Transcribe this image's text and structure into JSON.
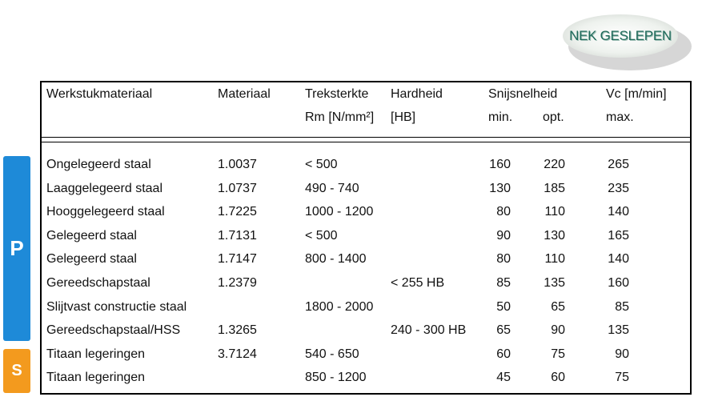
{
  "badge": {
    "label": "NEK GESLEPEN"
  },
  "tabs": {
    "p": "P",
    "s": "S"
  },
  "headers": {
    "werkstuk": "Werkstukmateriaal",
    "materiaal": "Materiaal",
    "treksterkte": "Treksterkte",
    "treksterkte_unit": "Rm [N/mm²]",
    "hardheid": "Hardheid",
    "hardheid_unit": "[HB]",
    "snijsnelheid": "Snijsnelheid",
    "min": "min.",
    "opt": "opt.",
    "vc": "Vc [m/min]",
    "max": "max."
  },
  "rows": [
    {
      "name": "Ongelegeerd staal",
      "mat": "1.0037",
      "trek": "< 500",
      "hard": "",
      "min": "160",
      "opt": "220",
      "max": "265"
    },
    {
      "name": "Laaggelegeerd staal",
      "mat": "1.0737",
      "trek": "490 - 740",
      "hard": "",
      "min": "130",
      "opt": "185",
      "max": "235"
    },
    {
      "name": "Hooggelegeerd staal",
      "mat": "1.7225",
      "trek": "1000 - 1200",
      "hard": "",
      "min": "80",
      "opt": "110",
      "max": "140"
    },
    {
      "name": "Gelegeerd staal",
      "mat": "1.7131",
      "trek": "<  500",
      "hard": "",
      "min": "90",
      "opt": "130",
      "max": "165"
    },
    {
      "name": "Gelegeerd staal",
      "mat": "1.7147",
      "trek": "800 - 1400",
      "hard": "",
      "min": "80",
      "opt": "110",
      "max": "140"
    },
    {
      "name": "Gereedschapstaal",
      "mat": "1.2379",
      "trek": "",
      "hard": "< 255 HB",
      "min": "85",
      "opt": "135",
      "max": "160"
    },
    {
      "name": "Slijtvast constructie staal",
      "mat": "",
      "trek": "1800 - 2000",
      "hard": "",
      "min": "50",
      "opt": "65",
      "max": "85"
    },
    {
      "name": "Gereedschapstaal/HSS",
      "mat": "1.3265",
      "trek": "",
      "hard": "240 - 300 HB",
      "min": "65",
      "opt": "90",
      "max": "135"
    },
    {
      "name": "Titaan legeringen",
      "mat": "3.7124",
      "trek": "540 - 650",
      "hard": "",
      "min": "60",
      "opt": "75",
      "max": "90"
    },
    {
      "name": "Titaan legeringen",
      "mat": "",
      "trek": "850 - 1200",
      "hard": "",
      "min": "45",
      "opt": "60",
      "max": "75"
    }
  ]
}
